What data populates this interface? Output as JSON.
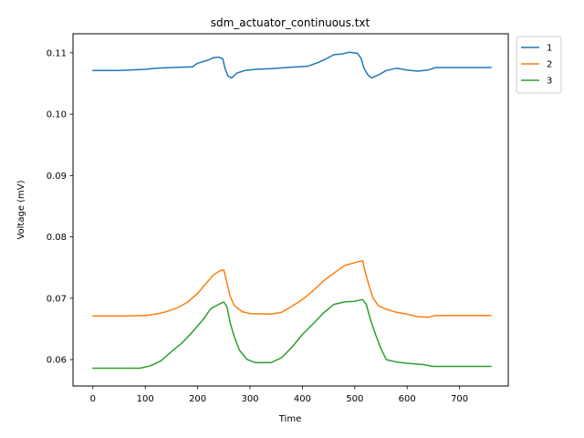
{
  "chart_data": {
    "type": "line",
    "title": "sdm_actuator_continuous.txt",
    "xlabel": "Time",
    "ylabel": "Voltage (mV)",
    "xlim": [
      -38,
      793
    ],
    "ylim": [
      0.0557,
      0.1131
    ],
    "x_ticks": [
      0,
      100,
      200,
      300,
      400,
      500,
      600,
      700
    ],
    "x_tick_labels": [
      "0",
      "100",
      "200",
      "300",
      "400",
      "500",
      "600",
      "700"
    ],
    "y_ticks": [
      0.06,
      0.07,
      0.08,
      0.09,
      0.1,
      0.11
    ],
    "y_tick_labels": [
      "0.06",
      "0.07",
      "0.08",
      "0.09",
      "0.10",
      "0.11"
    ],
    "grid": false,
    "legend_position": "outside-top-right",
    "series": [
      {
        "name": "1",
        "color": "#1f77b4",
        "points": [
          [
            0,
            0.1071
          ],
          [
            50,
            0.1071
          ],
          [
            100,
            0.1073
          ],
          [
            120,
            0.1075
          ],
          [
            150,
            0.1076
          ],
          [
            190,
            0.1077
          ],
          [
            200,
            0.1083
          ],
          [
            220,
            0.1088
          ],
          [
            230,
            0.1092
          ],
          [
            240,
            0.1093
          ],
          [
            248,
            0.109
          ],
          [
            252,
            0.1075
          ],
          [
            258,
            0.1062
          ],
          [
            265,
            0.1059
          ],
          [
            275,
            0.1067
          ],
          [
            290,
            0.1071
          ],
          [
            310,
            0.1073
          ],
          [
            340,
            0.1074
          ],
          [
            370,
            0.1076
          ],
          [
            390,
            0.1077
          ],
          [
            410,
            0.1078
          ],
          [
            430,
            0.1084
          ],
          [
            445,
            0.109
          ],
          [
            460,
            0.1097
          ],
          [
            475,
            0.1098
          ],
          [
            490,
            0.1101
          ],
          [
            505,
            0.1099
          ],
          [
            512,
            0.1091
          ],
          [
            518,
            0.1074
          ],
          [
            525,
            0.1064
          ],
          [
            532,
            0.1059
          ],
          [
            545,
            0.1064
          ],
          [
            560,
            0.1071
          ],
          [
            580,
            0.1075
          ],
          [
            600,
            0.1072
          ],
          [
            620,
            0.107
          ],
          [
            640,
            0.1072
          ],
          [
            655,
            0.1076
          ],
          [
            700,
            0.1076
          ],
          [
            760,
            0.1076
          ]
        ]
      },
      {
        "name": "2",
        "color": "#ff7f0e",
        "points": [
          [
            0,
            0.0671
          ],
          [
            60,
            0.0671
          ],
          [
            100,
            0.0672
          ],
          [
            120,
            0.0674
          ],
          [
            140,
            0.0678
          ],
          [
            160,
            0.0684
          ],
          [
            180,
            0.0693
          ],
          [
            200,
            0.0708
          ],
          [
            215,
            0.0723
          ],
          [
            230,
            0.0738
          ],
          [
            243,
            0.0745
          ],
          [
            250,
            0.0746
          ],
          [
            256,
            0.0725
          ],
          [
            262,
            0.0703
          ],
          [
            270,
            0.0688
          ],
          [
            285,
            0.0678
          ],
          [
            300,
            0.0675
          ],
          [
            340,
            0.0674
          ],
          [
            360,
            0.0677
          ],
          [
            380,
            0.0687
          ],
          [
            400,
            0.0698
          ],
          [
            420,
            0.0712
          ],
          [
            440,
            0.0728
          ],
          [
            460,
            0.0741
          ],
          [
            480,
            0.0753
          ],
          [
            500,
            0.0758
          ],
          [
            515,
            0.0761
          ],
          [
            520,
            0.0742
          ],
          [
            528,
            0.0718
          ],
          [
            535,
            0.07
          ],
          [
            545,
            0.0688
          ],
          [
            560,
            0.0682
          ],
          [
            580,
            0.0677
          ],
          [
            600,
            0.0674
          ],
          [
            620,
            0.067
          ],
          [
            640,
            0.0669
          ],
          [
            655,
            0.0672
          ],
          [
            700,
            0.0672
          ],
          [
            760,
            0.0672
          ]
        ]
      },
      {
        "name": "3",
        "color": "#2ca02c",
        "points": [
          [
            0,
            0.0586
          ],
          [
            60,
            0.0586
          ],
          [
            90,
            0.0586
          ],
          [
            110,
            0.059
          ],
          [
            130,
            0.0598
          ],
          [
            150,
            0.0613
          ],
          [
            170,
            0.0627
          ],
          [
            190,
            0.0645
          ],
          [
            210,
            0.0665
          ],
          [
            225,
            0.0683
          ],
          [
            240,
            0.069
          ],
          [
            250,
            0.0694
          ],
          [
            256,
            0.0686
          ],
          [
            262,
            0.066
          ],
          [
            270,
            0.0637
          ],
          [
            280,
            0.0615
          ],
          [
            295,
            0.06
          ],
          [
            310,
            0.0595
          ],
          [
            340,
            0.0595
          ],
          [
            360,
            0.0603
          ],
          [
            380,
            0.062
          ],
          [
            400,
            0.0641
          ],
          [
            420,
            0.0658
          ],
          [
            440,
            0.0676
          ],
          [
            460,
            0.069
          ],
          [
            480,
            0.0694
          ],
          [
            500,
            0.0695
          ],
          [
            515,
            0.0698
          ],
          [
            522,
            0.069
          ],
          [
            530,
            0.0665
          ],
          [
            540,
            0.064
          ],
          [
            550,
            0.0618
          ],
          [
            560,
            0.06
          ],
          [
            580,
            0.0596
          ],
          [
            600,
            0.0594
          ],
          [
            630,
            0.0592
          ],
          [
            650,
            0.0589
          ],
          [
            700,
            0.0589
          ],
          [
            760,
            0.0589
          ]
        ]
      }
    ]
  }
}
